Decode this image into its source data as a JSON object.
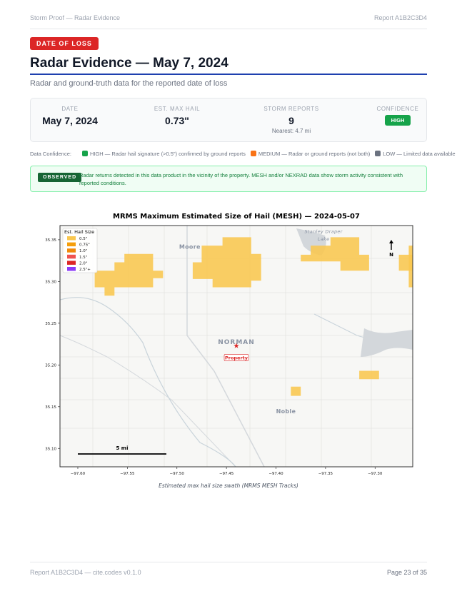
{
  "header": {
    "left": "Storm Proof — Radar Evidence",
    "right": "Report A1B2C3D4"
  },
  "badge": "DATE OF LOSS",
  "title": "Radar Evidence — May 7, 2024",
  "subtitle": "Radar and ground-truth data for the reported date of loss",
  "stats": {
    "date": {
      "label": "DATE",
      "value": "May 7, 2024"
    },
    "hail": {
      "label": "EST. MAX HAIL",
      "value": "0.73\""
    },
    "reports": {
      "label": "STORM REPORTS",
      "value": "9",
      "sub": "Nearest: 4.7 mi"
    },
    "confidence": {
      "label": "CONFIDENCE",
      "value": "HIGH",
      "color": "#16a34a"
    }
  },
  "confidence_legend": {
    "label": "Data Confidence:",
    "items": [
      {
        "text": "HIGH — Radar hail signature (>0.5\") confirmed by ground reports",
        "color": "#16a34a"
      },
      {
        "text": "MEDIUM — Radar or ground reports (not both)",
        "color": "#f97316"
      },
      {
        "text": "LOW — Limited data available",
        "color": "#6b7280"
      }
    ]
  },
  "observed": {
    "tag": "OBSERVED",
    "text": "Radar returns detected in this data product in the vicinity of the property. MESH and/or NEXRAD data show storm activity consistent with reported conditions."
  },
  "chart_data": {
    "type": "map",
    "title": "MRMS Maximum Estimated Size of Hail (MESH) — 2024-05-07",
    "caption": "Estimated max hail size swath (MRMS MESH Tracks)",
    "xlim": [
      -97.618,
      -97.262
    ],
    "ylim": [
      35.078,
      35.367
    ],
    "xticks": [
      -97.6,
      -97.55,
      -97.5,
      -97.45,
      -97.4,
      -97.35,
      -97.3
    ],
    "yticks": [
      35.1,
      35.15,
      35.2,
      35.25,
      35.3,
      35.35
    ],
    "xtick_labels": [
      "−97.60",
      "−97.55",
      "−97.50",
      "−97.45",
      "−97.40",
      "−97.35",
      "−97.30"
    ],
    "ytick_labels": [
      "35.10",
      "35.15",
      "35.20",
      "35.25",
      "35.30",
      "35.35"
    ],
    "legend": {
      "title": "Est. Hail Size",
      "placement": "top-left",
      "items": [
        {
          "label": "0.5\"",
          "color": "#f9c74f"
        },
        {
          "label": "0.75\"",
          "color": "#f59e0b"
        },
        {
          "label": "1.0\"",
          "color": "#f08a0b"
        },
        {
          "label": "1.5\"",
          "color": "#ef5350"
        },
        {
          "label": "2.0\"",
          "color": "#dc2626"
        },
        {
          "label": "2.5\"+",
          "color": "#8b3cf7"
        }
      ]
    },
    "swaths": [
      {
        "size": "0.5\"",
        "coords": [
          [
            -97.553,
            35.333
          ],
          [
            -97.524,
            35.333
          ],
          [
            -97.524,
            35.313
          ],
          [
            -97.514,
            35.313
          ],
          [
            -97.514,
            35.304
          ],
          [
            -97.524,
            35.304
          ],
          [
            -97.524,
            35.293
          ],
          [
            -97.563,
            35.293
          ],
          [
            -97.563,
            35.283
          ],
          [
            -97.573,
            35.283
          ],
          [
            -97.573,
            35.293
          ],
          [
            -97.583,
            35.293
          ],
          [
            -97.583,
            35.313
          ],
          [
            -97.563,
            35.313
          ],
          [
            -97.563,
            35.323
          ],
          [
            -97.553,
            35.323
          ]
        ]
      },
      {
        "size": "0.5\"",
        "coords": [
          [
            -97.454,
            35.353
          ],
          [
            -97.425,
            35.353
          ],
          [
            -97.425,
            35.333
          ],
          [
            -97.415,
            35.333
          ],
          [
            -97.415,
            35.301
          ],
          [
            -97.425,
            35.301
          ],
          [
            -97.425,
            35.293
          ],
          [
            -97.464,
            35.293
          ],
          [
            -97.464,
            35.303
          ],
          [
            -97.484,
            35.303
          ],
          [
            -97.484,
            35.323
          ],
          [
            -97.475,
            35.323
          ],
          [
            -97.475,
            35.343
          ],
          [
            -97.454,
            35.343
          ]
        ]
      },
      {
        "size": "0.5\"",
        "coords": [
          [
            -97.345,
            35.353
          ],
          [
            -97.316,
            35.353
          ],
          [
            -97.316,
            35.332
          ],
          [
            -97.306,
            35.332
          ],
          [
            -97.306,
            35.313
          ],
          [
            -97.335,
            35.313
          ],
          [
            -97.335,
            35.324
          ],
          [
            -97.375,
            35.324
          ],
          [
            -97.375,
            35.332
          ],
          [
            -97.365,
            35.332
          ],
          [
            -97.365,
            35.343
          ],
          [
            -97.345,
            35.343
          ]
        ]
      },
      {
        "size": "0.5\"",
        "coords": [
          [
            -97.276,
            35.332
          ],
          [
            -97.262,
            35.332
          ],
          [
            -97.262,
            35.313
          ],
          [
            -97.276,
            35.313
          ]
        ]
      },
      {
        "size": "0.5\"",
        "coords": [
          [
            -97.266,
            35.343
          ],
          [
            -97.262,
            35.343
          ],
          [
            -97.262,
            35.293
          ],
          [
            -97.266,
            35.293
          ]
        ]
      },
      {
        "size": "0.5\"",
        "coords": [
          [
            -97.316,
            35.193
          ],
          [
            -97.296,
            35.193
          ],
          [
            -97.296,
            35.183
          ],
          [
            -97.316,
            35.183
          ]
        ]
      },
      {
        "size": "0.5\"",
        "coords": [
          [
            -97.385,
            35.174
          ],
          [
            -97.375,
            35.174
          ],
          [
            -97.375,
            35.163
          ],
          [
            -97.385,
            35.163
          ]
        ]
      }
    ],
    "property": {
      "label": "Property",
      "lon": -97.44,
      "lat": 35.223,
      "color": "#dc2626"
    },
    "places": [
      {
        "name": "Moore",
        "lon": -97.487,
        "lat": 35.339
      },
      {
        "name": "NORMAN",
        "lon": -97.44,
        "lat": 35.225
      },
      {
        "name": "Noble",
        "lon": -97.39,
        "lat": 35.142
      },
      {
        "name": "Stanley Draper",
        "lon": -97.352,
        "lat": 35.358
      },
      {
        "name": "Lake",
        "lon": -97.352,
        "lat": 35.349
      }
    ],
    "scale_bar": "5 mi",
    "north_arrow": "N"
  },
  "footer": {
    "left": "Report A1B2C3D4 — cite.codes v0.1.0",
    "right": "Page 23 of 35"
  }
}
